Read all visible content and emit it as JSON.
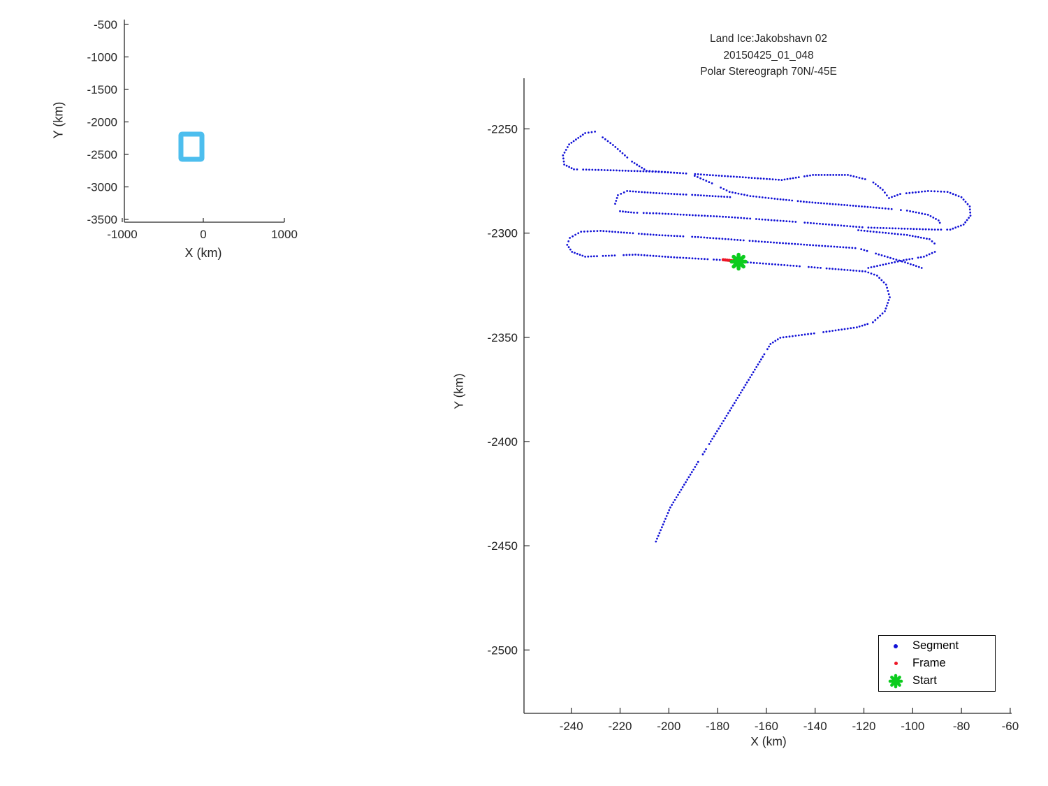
{
  "figure": {
    "background": "#ffffff",
    "axis_color": "#262626"
  },
  "main": {
    "title_lines": [
      "Land Ice:Jakobshavn 02",
      "20150425_01_048",
      "Polar Stereograph 70N/-45E"
    ],
    "xlabel": "X (km)",
    "ylabel": "Y (km)",
    "x_ticks": [
      -240,
      -220,
      -200,
      -180,
      -160,
      -140,
      -120,
      -100,
      -80,
      -60
    ],
    "y_ticks": [
      -2250,
      -2300,
      -2350,
      -2400,
      -2450,
      -2500
    ],
    "xlim": [
      -259.4,
      -59.4
    ],
    "ylim": [
      -2530.4,
      -2225.7
    ]
  },
  "inset": {
    "xlabel": "X (km)",
    "ylabel": "Y (km)",
    "x_ticks": [
      -1000,
      0,
      1000
    ],
    "y_ticks": [
      -500,
      -1000,
      -1500,
      -2000,
      -2500,
      -3000,
      -3500
    ],
    "xlim": [
      -974,
      1000
    ],
    "ylim": [
      -3543,
      -425
    ],
    "coverage_rect": {
      "x_range": [
        -276,
        -17
      ],
      "y_range": [
        -2575,
        -2188
      ],
      "color": "#4DBEEE"
    }
  },
  "legend": {
    "items": [
      {
        "label": "Segment",
        "marker": "blue-dot",
        "color": "#1111d6"
      },
      {
        "label": "Frame",
        "marker": "red-dot",
        "color": "#ed1626"
      },
      {
        "label": "Start",
        "marker": "green-asterisk",
        "color": "#0ccc1e"
      }
    ]
  },
  "chart_data": {
    "type": "scatter",
    "title": "Land Ice:Jakobshavn 02 20150425_01_048 Polar Stereograph 70N/-45E",
    "xlabel": "X (km)",
    "ylabel": "Y (km)",
    "xlim": [
      -259.4,
      -59.4
    ],
    "ylim": [
      -2530.4,
      -2225.7
    ],
    "grid": false,
    "legend_position": "lower right",
    "series": [
      {
        "name": "Segment",
        "color": "#1111d6",
        "style": "dotted-track",
        "strokes": [
          [
            [
              -196.6,
              -2271.1
            ],
            [
              -209.1,
              -2270.1
            ],
            [
              -215.1,
              -2265.7
            ],
            [
              -222.9,
              -2257.7
            ],
            [
              -230.3,
              -2251.3
            ],
            [
              -234.3,
              -2252.0
            ],
            [
              -240.9,
              -2257.4
            ],
            [
              -243.4,
              -2262.7
            ],
            [
              -242.9,
              -2267.1
            ],
            [
              -238.9,
              -2269.4
            ],
            [
              -225.1,
              -2269.8
            ],
            [
              -208.0,
              -2270.4
            ],
            [
              -196.6,
              -2271.1
            ]
          ],
          [
            [
              -196.6,
              -2271.1
            ],
            [
              -170.9,
              -2273.1
            ],
            [
              -153.7,
              -2274.5
            ],
            [
              -140.9,
              -2272.1
            ],
            [
              -126.6,
              -2272.1
            ],
            [
              -117.1,
              -2274.8
            ],
            [
              -112.3,
              -2279.2
            ],
            [
              -109.7,
              -2283.2
            ],
            [
              -105.1,
              -2281.2
            ],
            [
              -93.7,
              -2279.8
            ],
            [
              -85.7,
              -2280.2
            ],
            [
              -80.0,
              -2282.8
            ],
            [
              -76.6,
              -2287.2
            ],
            [
              -76.3,
              -2291.6
            ],
            [
              -79.1,
              -2295.9
            ],
            [
              -84.6,
              -2298.3
            ],
            [
              -90.9,
              -2298.3
            ]
          ],
          [
            [
              -189.4,
              -2272.5
            ],
            [
              -182.3,
              -2276.1
            ],
            [
              -175.1,
              -2280.2
            ],
            [
              -166.6,
              -2282.2
            ],
            [
              -156.6,
              -2283.5
            ],
            [
              -142.3,
              -2285.2
            ],
            [
              -128.0,
              -2286.5
            ],
            [
              -113.7,
              -2287.9
            ],
            [
              -102.3,
              -2289.2
            ],
            [
              -93.7,
              -2291.2
            ],
            [
              -89.4,
              -2293.9
            ],
            [
              -88.3,
              -2296.2
            ]
          ],
          [
            [
              -90.9,
              -2298.3
            ],
            [
              -119.4,
              -2297.3
            ],
            [
              -148.0,
              -2294.6
            ],
            [
              -176.6,
              -2292.2
            ],
            [
              -205.1,
              -2290.5
            ],
            [
              -214.3,
              -2290.2
            ]
          ],
          [
            [
              -214.3,
              -2290.2
            ],
            [
              -220.0,
              -2289.5
            ],
            [
              -222.0,
              -2285.9
            ],
            [
              -220.9,
              -2281.8
            ],
            [
              -217.1,
              -2279.8
            ],
            [
              -205.1,
              -2280.8
            ],
            [
              -188.0,
              -2281.8
            ],
            [
              -173.7,
              -2282.8
            ]
          ],
          [
            [
              -96.3,
              -2316.7
            ],
            [
              -103.1,
              -2314.0
            ],
            [
              -122.3,
              -2307.3
            ],
            [
              -159.4,
              -2304.3
            ],
            [
              -188.0,
              -2301.9
            ],
            [
              -205.1,
              -2300.9
            ],
            [
              -228.0,
              -2298.9
            ],
            [
              -236.0,
              -2299.3
            ],
            [
              -240.6,
              -2302.3
            ],
            [
              -241.7,
              -2305.6
            ],
            [
              -239.7,
              -2309.0
            ],
            [
              -234.3,
              -2311.3
            ]
          ],
          [
            [
              -234.3,
              -2311.3
            ],
            [
              -213.7,
              -2310.3
            ],
            [
              -196.6,
              -2311.7
            ],
            [
              -176.6,
              -2313.0
            ],
            [
              -171.4,
              -2313.7
            ],
            [
              -145.1,
              -2316.0
            ],
            [
              -119.4,
              -2318.4
            ],
            [
              -114.6,
              -2320.4
            ],
            [
              -110.9,
              -2324.7
            ],
            [
              -109.4,
              -2330.8
            ],
            [
              -111.4,
              -2337.5
            ],
            [
              -116.3,
              -2342.8
            ],
            [
              -122.9,
              -2345.2
            ],
            [
              -136.6,
              -2347.5
            ],
            [
              -154.3,
              -2350.2
            ],
            [
              -158.3,
              -2353.2
            ],
            [
              -173.7,
              -2382.7
            ],
            [
              -188.0,
              -2409.8
            ],
            [
              -199.4,
              -2431.6
            ],
            [
              -206.3,
              -2450.7
            ]
          ],
          [
            [
              -122.3,
              -2298.6
            ],
            [
              -102.3,
              -2300.9
            ],
            [
              -93.1,
              -2302.9
            ],
            [
              -90.0,
              -2306.0
            ],
            [
              -90.9,
              -2309.0
            ],
            [
              -95.4,
              -2311.3
            ],
            [
              -103.7,
              -2313.0
            ],
            [
              -119.4,
              -2317.0
            ]
          ]
        ]
      },
      {
        "name": "Frame",
        "color": "#ed1626",
        "style": "dense-dots",
        "strokes": [
          [
            [
              -177.7,
              -2312.8
            ],
            [
              -172.0,
              -2313.5
            ]
          ]
        ]
      },
      {
        "name": "Start",
        "color": "#0ccc1e",
        "style": "asterisk-marker",
        "point": [
          -171.4,
          -2313.7
        ]
      }
    ],
    "inset_overview": {
      "type": "coverage-box",
      "x_range": [
        -276,
        -17
      ],
      "y_range": [
        -2575,
        -2188
      ],
      "color": "#4DBEEE"
    }
  }
}
